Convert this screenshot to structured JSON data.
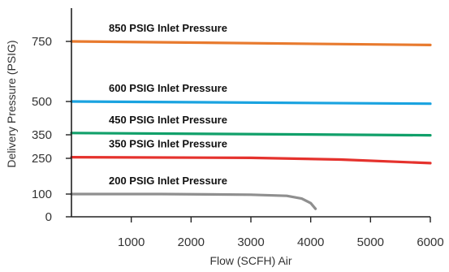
{
  "chart_data": {
    "type": "line",
    "xlabel": "Flow (SCFH) Air",
    "ylabel": "Delivery Pressure (PSIG)",
    "xlim": [
      0,
      6000
    ],
    "ylim": [
      0,
      950
    ],
    "x_ticks": [
      1000,
      2000,
      3000,
      4000,
      5000,
      6000
    ],
    "y_ticks": [
      0,
      100,
      250,
      350,
      500,
      750
    ],
    "grid": false,
    "legend": "none",
    "series": [
      {
        "name": "850 PSIG Inlet Pressure",
        "color": "#E87A2E",
        "points": [
          [
            0,
            750
          ],
          [
            6000,
            735
          ]
        ]
      },
      {
        "name": "600 PSIG Inlet Pressure",
        "color": "#1AA3E0",
        "points": [
          [
            0,
            500
          ],
          [
            6000,
            490
          ]
        ]
      },
      {
        "name": "450 PSIG Inlet Pressure",
        "color": "#11A06A",
        "points": [
          [
            0,
            358
          ],
          [
            6000,
            348
          ]
        ]
      },
      {
        "name": "350 PSIG Inlet Pressure",
        "color": "#E5322D",
        "points": [
          [
            0,
            255
          ],
          [
            3000,
            252
          ],
          [
            4500,
            245
          ],
          [
            6000,
            230
          ]
        ]
      },
      {
        "name": "200 PSIG Inlet Pressure",
        "color": "#8F8F8F",
        "points": [
          [
            0,
            100
          ],
          [
            1500,
            100
          ],
          [
            3000,
            97
          ],
          [
            3600,
            92
          ],
          [
            3850,
            80
          ],
          [
            4000,
            60
          ],
          [
            4080,
            35
          ]
        ]
      }
    ]
  }
}
